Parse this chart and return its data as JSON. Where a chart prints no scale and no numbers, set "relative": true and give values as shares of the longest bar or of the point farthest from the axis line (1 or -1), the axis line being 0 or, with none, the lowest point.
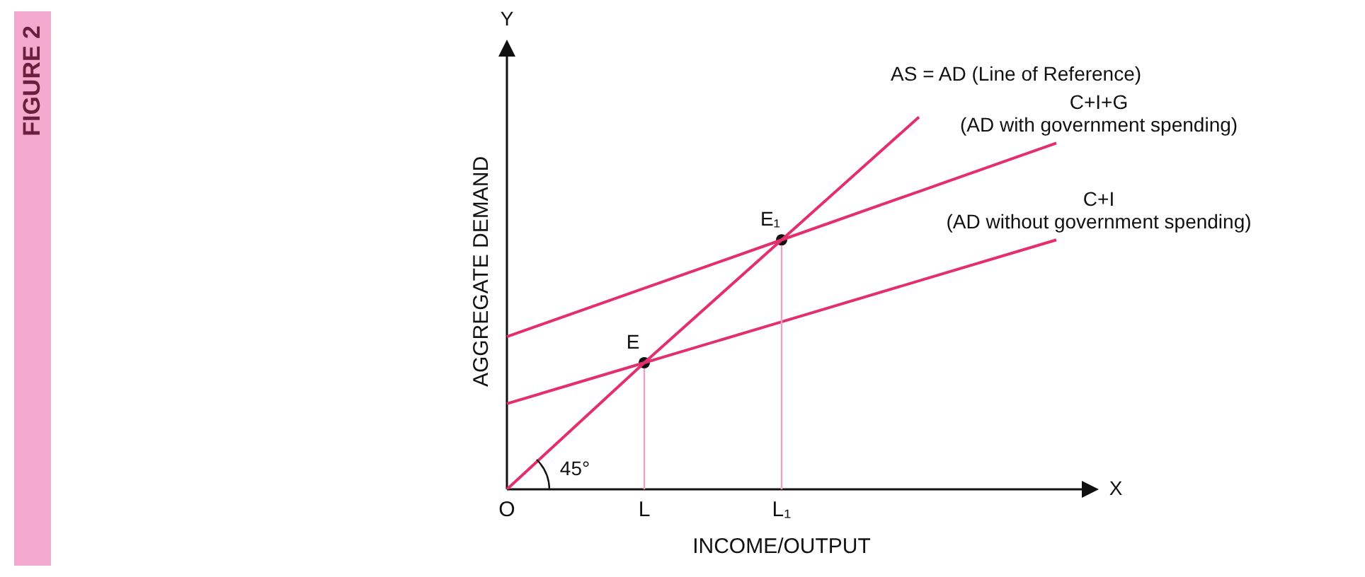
{
  "chart_data": {
    "type": "line",
    "title": "FIGURE 2",
    "xlabel": "INCOME/OUTPUT",
    "ylabel": "AGGREGATE DEMAND",
    "relative": true,
    "grid": false,
    "legend": false,
    "marker": "none",
    "line_style": "solid",
    "categories": [
      "O",
      "L",
      "L₁",
      null,
      null
    ],
    "series": [
      {
        "name": "AS = AD (Line of Reference)",
        "color": "#e3306c",
        "values": [
          0,
          0.34,
          0.67,
          1,
          null
        ]
      },
      {
        "name": "C+I+G (AD with government spending)",
        "color": "#e3306c",
        "values": [
          0.41,
          0.54,
          0.67,
          0.8,
          0.93
        ]
      },
      {
        "name": "C+I (AD without government spending)",
        "color": "#e3306c",
        "values": [
          0.23,
          0.34,
          0.45,
          0.56,
          0.67
        ]
      },
      {
        "type": "scatter",
        "color": "#111111",
        "marker": "circle",
        "values": [
          null,
          0.34,
          0.67,
          null,
          null
        ]
      }
    ],
    "annotations": [
      {
        "text": "E",
        "x": "L",
        "y": 0.34
      },
      {
        "text": "E₁",
        "x": "L₁",
        "y": 0.67
      },
      "45°",
      "Y",
      "X"
    ]
  }
}
